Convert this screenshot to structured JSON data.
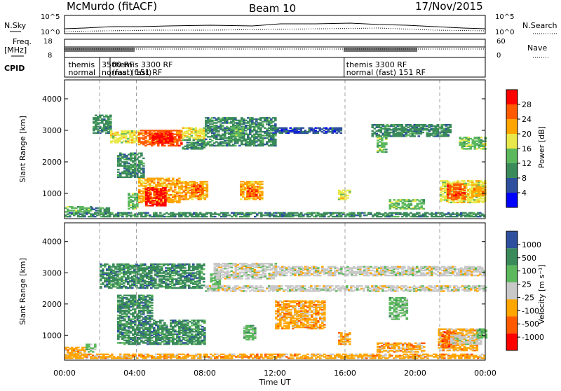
{
  "header": {
    "station": "McMurdo (fitACF)",
    "beam": "Beam 10",
    "date": "17/Nov/2015"
  },
  "summary_panel": {
    "nsky_label": "N.Sky",
    "nsky_ticks": [
      "10^5",
      "10^0"
    ],
    "right_ticks": [
      "10^5",
      "10^0"
    ],
    "nsearch_label": "N.Search",
    "freq_label": "Freq.",
    "freq_unit": "[MHz]",
    "freq_ticks": [
      "18",
      "8"
    ],
    "nave_label": "Nave",
    "nave_ticks": [
      "60",
      "0"
    ],
    "cpid_label": "CPID",
    "cpid_entries": [
      {
        "t": 0.1,
        "l1": "themis",
        "l2": "normal"
      },
      {
        "t": 2.0,
        "l1": "3500 RF",
        "l2": "normal (fast)"
      },
      {
        "t": 2.6,
        "l1": "themis 3300 RF",
        "l2": "(fast) 151 RF"
      },
      {
        "t": 15.95,
        "l1": "themis 3300 RF",
        "l2": "normal (fast) 151 RF"
      }
    ]
  },
  "colors": {
    "power": [
      "#0000ff",
      "#2e4f9e",
      "#3a8a5a",
      "#5cb85c",
      "#e8e84a",
      "#ffa500",
      "#ff5a00",
      "#ff0000"
    ],
    "velocity": [
      "#2e4f9e",
      "#3a8a5a",
      "#5cb85c",
      "#c8c8c8",
      "#ffa500",
      "#ff5a00",
      "#ff0000"
    ]
  },
  "chart_data": [
    {
      "type": "heatmap",
      "name": "power",
      "ylabel": "Slant Range [km]",
      "yticks": [
        1000,
        2000,
        3000,
        4000
      ],
      "ylim": [
        200,
        4600
      ],
      "colorbar_label": "Power [dB]",
      "colorbar_ticks": [
        "4",
        "8",
        "12",
        "16",
        "20",
        "24",
        "28"
      ],
      "echo_regions": [
        {
          "t0": 0.0,
          "t1": 1.5,
          "r0": 400,
          "r1": 600,
          "level": 3
        },
        {
          "t0": 1.5,
          "t1": 2.5,
          "r0": 400,
          "r1": 550,
          "level": 2
        },
        {
          "t0": 3.6,
          "t1": 4.2,
          "r0": 500,
          "r1": 1000,
          "level": 3
        },
        {
          "t0": 4.2,
          "t1": 6.5,
          "r0": 700,
          "r1": 1500,
          "level": 5
        },
        {
          "t0": 4.6,
          "t1": 5.8,
          "r0": 600,
          "r1": 1200,
          "level": 7
        },
        {
          "t0": 6.5,
          "t1": 8.1,
          "r0": 800,
          "r1": 1400,
          "level": 5
        },
        {
          "t0": 7.2,
          "t1": 7.9,
          "r0": 900,
          "r1": 1300,
          "level": 6
        },
        {
          "t0": 1.6,
          "t1": 2.6,
          "r0": 2900,
          "r1": 3500,
          "level": 2
        },
        {
          "t0": 2.6,
          "t1": 4.2,
          "r0": 2600,
          "r1": 3000,
          "level": 4
        },
        {
          "t0": 4.2,
          "t1": 6.7,
          "r0": 2500,
          "r1": 3000,
          "level": 6
        },
        {
          "t0": 5.0,
          "t1": 6.1,
          "r0": 2600,
          "r1": 2900,
          "level": 7
        },
        {
          "t0": 6.7,
          "t1": 8.0,
          "r0": 2700,
          "r1": 3100,
          "level": 4
        },
        {
          "t0": 3.0,
          "t1": 4.5,
          "r0": 1500,
          "r1": 2300,
          "level": 2
        },
        {
          "t0": 6.7,
          "t1": 8.0,
          "r0": 2400,
          "r1": 2700,
          "level": 2
        },
        {
          "t0": 10.0,
          "t1": 11.2,
          "r0": 800,
          "r1": 1400,
          "level": 5
        },
        {
          "t0": 10.4,
          "t1": 10.9,
          "r0": 900,
          "r1": 1200,
          "level": 6
        },
        {
          "t0": 11.5,
          "t1": 15.8,
          "r0": 2900,
          "r1": 3100,
          "level": 1
        },
        {
          "t0": 8.0,
          "t1": 12.0,
          "r0": 2500,
          "r1": 3400,
          "level": 2
        },
        {
          "t0": 9.5,
          "t1": 10.2,
          "r0": 2800,
          "r1": 3100,
          "level": 3
        },
        {
          "t0": 15.6,
          "t1": 16.3,
          "r0": 800,
          "r1": 1100,
          "level": 4
        },
        {
          "t0": 17.5,
          "t1": 22.0,
          "r0": 2800,
          "r1": 3200,
          "level": 2
        },
        {
          "t0": 17.8,
          "t1": 18.3,
          "r0": 2300,
          "r1": 2800,
          "level": 3
        },
        {
          "t0": 18.5,
          "t1": 20.5,
          "r0": 500,
          "r1": 800,
          "level": 3
        },
        {
          "t0": 21.4,
          "t1": 24.0,
          "r0": 700,
          "r1": 1400,
          "level": 4
        },
        {
          "t0": 21.8,
          "t1": 22.8,
          "r0": 800,
          "r1": 1300,
          "level": 6
        },
        {
          "t0": 23.2,
          "t1": 24.0,
          "r0": 900,
          "r1": 1200,
          "level": 5
        },
        {
          "t0": 22.5,
          "t1": 24.0,
          "r0": 2400,
          "r1": 2800,
          "level": 3
        },
        {
          "t0": 0.0,
          "t1": 24.0,
          "r0": 250,
          "r1": 380,
          "level": 2
        }
      ]
    },
    {
      "type": "heatmap",
      "name": "velocity",
      "xlabel": "Time UT",
      "xticks": [
        "00:00",
        "04:00",
        "08:00",
        "12:00",
        "16:00",
        "20:00",
        "00:00"
      ],
      "xlim": [
        0,
        24
      ],
      "ylabel": "Slant Range [km]",
      "yticks": [
        1000,
        2000,
        3000,
        4000
      ],
      "ylim": [
        200,
        4600
      ],
      "colorbar_label": "Velocity [m s⁻¹]",
      "colorbar_ticks": [
        "1000",
        "500",
        "100",
        "25",
        "-25",
        "-100",
        "-500",
        "-1000"
      ],
      "echo_regions": [
        {
          "t0": 0.0,
          "t1": 1.2,
          "r0": 350,
          "r1": 600,
          "level": 4
        },
        {
          "t0": 1.2,
          "t1": 1.8,
          "r0": 450,
          "r1": 700,
          "level": 2
        },
        {
          "t0": 3.0,
          "t1": 8.0,
          "r0": 700,
          "r1": 1500,
          "level": 1
        },
        {
          "t0": 2.0,
          "t1": 8.0,
          "r0": 2500,
          "r1": 3300,
          "level": 1
        },
        {
          "t0": 3.0,
          "t1": 5.0,
          "r0": 1500,
          "r1": 2300,
          "level": 1
        },
        {
          "t0": 8.3,
          "t1": 8.8,
          "r0": 2500,
          "r1": 3000,
          "level": 2
        },
        {
          "t0": 8.5,
          "t1": 12.0,
          "r0": 2800,
          "r1": 3300,
          "level": 3
        },
        {
          "t0": 12.0,
          "t1": 24.0,
          "r0": 2900,
          "r1": 3200,
          "level": 3
        },
        {
          "t0": 8.0,
          "t1": 24.0,
          "r0": 2400,
          "r1": 2600,
          "level": 3
        },
        {
          "t0": 10.2,
          "t1": 10.9,
          "r0": 850,
          "r1": 1300,
          "level": 2
        },
        {
          "t0": 12.0,
          "t1": 14.8,
          "r0": 1200,
          "r1": 2100,
          "level": 4
        },
        {
          "t0": 15.6,
          "t1": 16.3,
          "r0": 700,
          "r1": 1100,
          "level": 4
        },
        {
          "t0": 17.8,
          "t1": 20.5,
          "r0": 450,
          "r1": 750,
          "level": 4
        },
        {
          "t0": 18.5,
          "t1": 19.5,
          "r0": 1500,
          "r1": 2200,
          "level": 2
        },
        {
          "t0": 21.3,
          "t1": 23.5,
          "r0": 500,
          "r1": 1200,
          "level": 4
        },
        {
          "t0": 21.5,
          "t1": 22.3,
          "r0": 600,
          "r1": 1100,
          "level": 5
        },
        {
          "t0": 22.0,
          "t1": 23.8,
          "r0": 700,
          "r1": 1000,
          "level": 3
        },
        {
          "t0": 23.5,
          "t1": 24.0,
          "r0": 900,
          "r1": 1200,
          "level": 2
        },
        {
          "t0": 0.0,
          "t1": 24.0,
          "r0": 250,
          "r1": 380,
          "level": 4
        }
      ]
    }
  ]
}
